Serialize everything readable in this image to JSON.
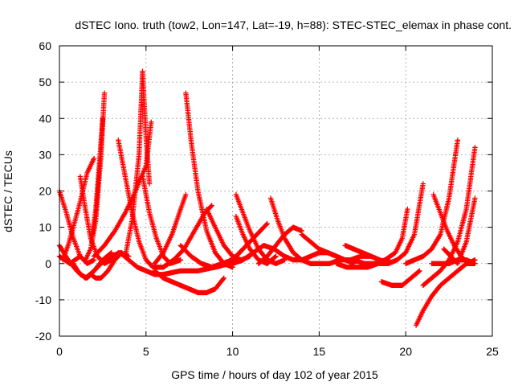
{
  "chart_data": {
    "type": "scatter",
    "title": "dSTEC Iono. truth (tow2, Lon=147, Lat=-19, h=88): STEC-STEC_elemax in phase cont.",
    "xlabel": "GPS time / hours of day 102 of year 2015",
    "ylabel": "dSTEC  / TECUs",
    "xlim": [
      0,
      25
    ],
    "ylim": [
      -20,
      60
    ],
    "xticks": [
      "0",
      "5",
      "10",
      "15",
      "20",
      "25"
    ],
    "yticks": [
      "-20",
      "-10",
      "0",
      "10",
      "20",
      "30",
      "40",
      "50",
      "60"
    ],
    "grid": true,
    "marker": "plus",
    "series_color": "#ff0000",
    "series": [
      {
        "x": [
          0.0,
          0.3,
          0.6,
          0.9,
          1.2
        ],
        "y": [
          2,
          1,
          0,
          1,
          2
        ]
      },
      {
        "x": [
          0.0,
          0.4,
          0.8,
          1.2,
          1.6,
          2.0
        ],
        "y": [
          20,
          14,
          7,
          2,
          0,
          1
        ]
      },
      {
        "x": [
          0.2,
          0.5,
          0.8,
          1.2,
          1.6,
          2.0
        ],
        "y": [
          1,
          5,
          10,
          17,
          25,
          29
        ]
      },
      {
        "x": [
          0.0,
          0.5,
          1.0,
          1.5,
          2.0,
          2.5,
          3.0
        ],
        "y": [
          5,
          1,
          -2,
          -4,
          -2,
          1,
          3
        ]
      },
      {
        "x": [
          0.8,
          1.2,
          1.6,
          2.0,
          2.4,
          3.0,
          3.5,
          4.0
        ],
        "y": [
          0,
          -3,
          -4,
          -2,
          0,
          2,
          3,
          2
        ]
      },
      {
        "x": [
          1.2,
          1.5,
          1.8,
          2.2,
          2.6,
          3.0,
          3.4
        ],
        "y": [
          24,
          15,
          7,
          2,
          0,
          1,
          3
        ]
      },
      {
        "x": [
          1.5,
          1.8,
          2.1,
          2.4,
          2.6
        ],
        "y": [
          1,
          4,
          12,
          30,
          47
        ]
      },
      {
        "x": [
          1.8,
          2.1,
          2.4,
          2.8,
          3.2,
          3.6
        ],
        "y": [
          -3,
          -4,
          -4,
          -2,
          1,
          3
        ]
      },
      {
        "x": [
          1.9,
          2.1,
          2.3,
          2.5
        ],
        "y": [
          8,
          15,
          27,
          40
        ]
      },
      {
        "x": [
          3.4,
          3.8,
          4.2,
          4.6,
          5.0,
          5.4,
          6.0,
          6.6
        ],
        "y": [
          34,
          24,
          14,
          6,
          1,
          -1,
          -1,
          1
        ]
      },
      {
        "x": [
          2.0,
          2.6,
          3.2,
          3.8,
          4.4,
          5.0,
          5.3
        ],
        "y": [
          2,
          5,
          9,
          14,
          20,
          27,
          39
        ]
      },
      {
        "x": [
          3.8,
          4.2,
          4.6,
          4.8,
          5.0,
          5.2
        ],
        "y": [
          2,
          12,
          30,
          53,
          35,
          22
        ]
      },
      {
        "x": [
          4.8,
          5.2,
          5.6,
          6.0,
          6.4,
          7.0
        ],
        "y": [
          24,
          14,
          7,
          2,
          0,
          1
        ]
      },
      {
        "x": [
          3.5,
          4.0,
          4.5,
          5.0,
          5.5,
          6.0,
          7.0,
          8.0,
          9.0,
          9.8
        ],
        "y": [
          3,
          1,
          -1,
          -2,
          -3,
          -3,
          -2,
          -2,
          -1,
          0
        ]
      },
      {
        "x": [
          5.5,
          6.0,
          6.5,
          7.0,
          7.5,
          8.0,
          8.5,
          9.0,
          9.5
        ],
        "y": [
          -2,
          -4,
          -5,
          -6,
          -7,
          -8,
          -8,
          -7,
          -4
        ]
      },
      {
        "x": [
          5.5,
          6.0,
          6.5,
          7.0,
          7.3
        ],
        "y": [
          0,
          3,
          8,
          15,
          19
        ]
      },
      {
        "x": [
          6.0,
          6.6,
          7.2,
          7.8,
          8.4,
          8.8
        ],
        "y": [
          -1,
          1,
          4,
          9,
          14,
          16
        ]
      },
      {
        "x": [
          7.3,
          7.6,
          8.0,
          8.5,
          9.0,
          9.5,
          10.0
        ],
        "y": [
          47,
          34,
          20,
          9,
          3,
          0,
          -1
        ]
      },
      {
        "x": [
          7.0,
          7.6,
          8.2,
          8.8,
          9.4,
          10.0,
          10.6
        ],
        "y": [
          5,
          2,
          0,
          -1,
          0,
          1,
          4
        ]
      },
      {
        "x": [
          8.5,
          9.0,
          9.5,
          10.0,
          10.5,
          11.0
        ],
        "y": [
          15,
          10,
          5,
          2,
          1,
          2
        ]
      },
      {
        "x": [
          9.0,
          9.6,
          10.2,
          10.8,
          11.4,
          12.0
        ],
        "y": [
          -1,
          0,
          2,
          5,
          8,
          11
        ]
      },
      {
        "x": [
          10.2,
          10.6,
          11.0,
          11.5,
          12.0,
          12.5,
          13.0
        ],
        "y": [
          19,
          14,
          9,
          4,
          1,
          0,
          1
        ]
      },
      {
        "x": [
          10.2,
          10.6,
          11.0,
          11.5,
          12.0,
          12.5
        ],
        "y": [
          13,
          8,
          4,
          1,
          0,
          2
        ]
      },
      {
        "x": [
          10.0,
          10.6,
          11.2,
          11.8,
          12.4,
          13.0
        ],
        "y": [
          0,
          1,
          3,
          5,
          4,
          2
        ]
      },
      {
        "x": [
          12.2,
          12.6,
          13.0,
          13.5,
          14.0,
          14.5,
          15.0
        ],
        "y": [
          18,
          12,
          7,
          3,
          1,
          0,
          0
        ]
      },
      {
        "x": [
          11.5,
          12.0,
          12.5,
          13.0,
          13.5,
          14.0
        ],
        "y": [
          0,
          2,
          5,
          8,
          10,
          9
        ]
      },
      {
        "x": [
          13.0,
          13.5,
          14.0,
          14.5,
          15.0,
          15.5,
          16.0
        ],
        "y": [
          2,
          1,
          1,
          2,
          3,
          3,
          2
        ]
      },
      {
        "x": [
          14.0,
          14.5,
          15.0,
          15.5,
          16.0,
          16.5,
          17.0
        ],
        "y": [
          8,
          6,
          4,
          3,
          2,
          1,
          0
        ]
      },
      {
        "x": [
          15.0,
          15.6,
          16.2,
          16.8,
          17.4,
          18.0
        ],
        "y": [
          0,
          0,
          1,
          1,
          2,
          2
        ]
      },
      {
        "x": [
          16.5,
          17.0,
          17.5,
          18.0,
          18.5,
          19.0
        ],
        "y": [
          5,
          4,
          3,
          2,
          1,
          0
        ]
      },
      {
        "x": [
          16.0,
          16.6,
          17.2,
          17.8,
          18.4,
          19.0
        ],
        "y": [
          0,
          -1,
          -1,
          -1,
          0,
          1
        ]
      },
      {
        "x": [
          17.0,
          17.6,
          18.2,
          18.8,
          19.4,
          19.8,
          20.1
        ],
        "y": [
          1,
          0,
          0,
          1,
          3,
          7,
          15
        ]
      },
      {
        "x": [
          18.5,
          19.0,
          19.5,
          20.0,
          20.5,
          21.0
        ],
        "y": [
          0,
          0,
          1,
          3,
          8,
          22
        ]
      },
      {
        "x": [
          18.6,
          19.2,
          19.8,
          20.3,
          20.8
        ],
        "y": [
          -5,
          -6,
          -6,
          -4,
          -2
        ]
      },
      {
        "x": [
          20.6,
          21.0,
          21.5,
          22.0,
          22.5,
          23.0,
          23.5,
          24.0
        ],
        "y": [
          -17,
          -13,
          -9,
          -6,
          -4,
          -2,
          0,
          0
        ]
      },
      {
        "x": [
          20.0,
          20.5,
          21.0,
          21.5,
          22.0,
          22.5,
          23.0
        ],
        "y": [
          0,
          1,
          2,
          4,
          8,
          18,
          34
        ]
      },
      {
        "x": [
          21.0,
          21.5,
          22.0,
          22.5,
          23.0,
          23.5,
          24.0
        ],
        "y": [
          -6,
          -4,
          -2,
          1,
          6,
          15,
          32
        ]
      },
      {
        "x": [
          21.6,
          22.0,
          22.4,
          22.8,
          23.2,
          23.6,
          24.0
        ],
        "y": [
          19,
          14,
          9,
          5,
          2,
          0,
          1
        ]
      },
      {
        "x": [
          22.2,
          22.6,
          23.0,
          23.5,
          24.0
        ],
        "y": [
          4,
          2,
          0,
          6,
          18
        ]
      },
      {
        "x": [
          21.5,
          22.0,
          22.5,
          23.0,
          23.5,
          24.0
        ],
        "y": [
          0,
          0,
          0,
          1,
          1,
          0
        ]
      }
    ]
  }
}
